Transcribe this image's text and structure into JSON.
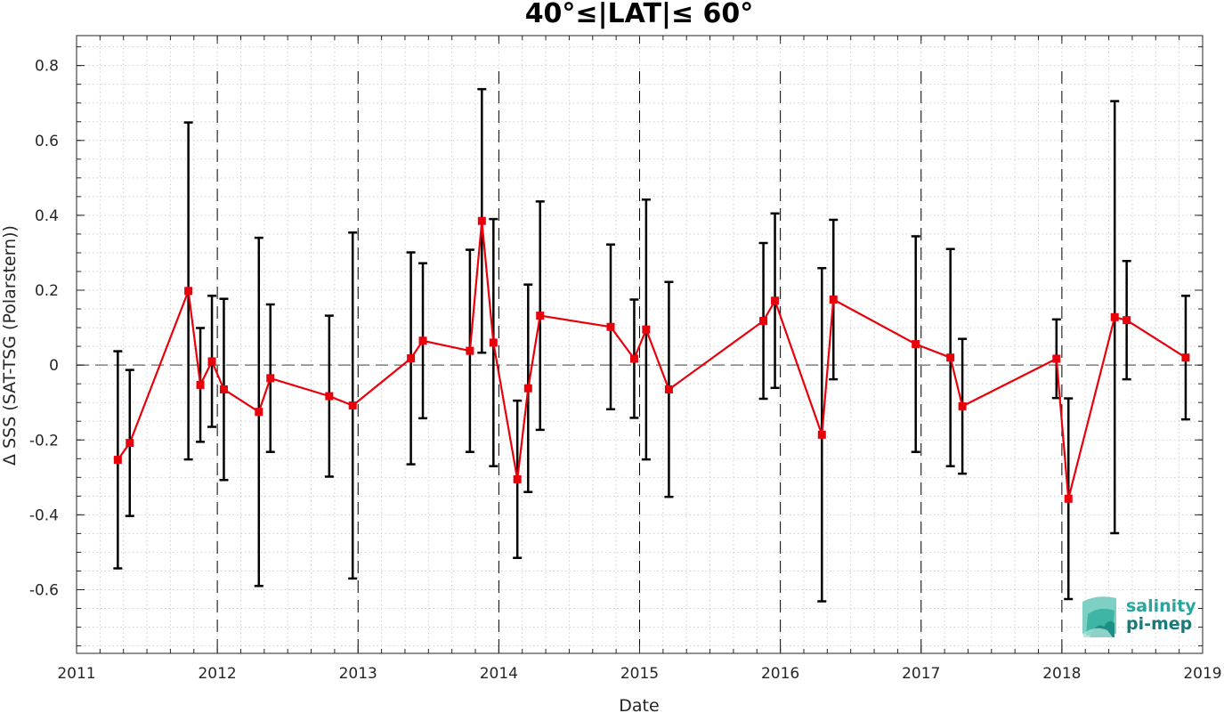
{
  "chart_data": {
    "type": "line",
    "title": "40°≤|LAT|≤ 60°",
    "xlabel": "Date",
    "ylabel": "Δ SSS (SAT-TSG (Polarstern))",
    "xlim": [
      "2011-01-01",
      "2019-01-01"
    ],
    "ylim": [
      -0.77,
      0.88
    ],
    "x_ticks": [
      "2011",
      "2012",
      "2013",
      "2014",
      "2015",
      "2016",
      "2017",
      "2018",
      "2019"
    ],
    "y_ticks": [
      "-0.6",
      "-0.4",
      "-0.2",
      "0",
      "0.2",
      "0.4",
      "0.6",
      "0.8"
    ],
    "grid": true,
    "year_boundaries_dashed": [
      "2012-01-01",
      "2013-01-01",
      "2014-01-01",
      "2015-01-01",
      "2016-01-01",
      "2017-01-01",
      "2018-01-01"
    ],
    "reference_line": 0,
    "colors": {
      "series": "#e8000b",
      "errorbar": "#000000",
      "reference": "#7f7f7f"
    },
    "series": [
      {
        "marker": "square",
        "points": [
          {
            "x": "2011-04-18",
            "y": -0.253,
            "err": 0.29
          },
          {
            "x": "2011-05-19",
            "y": -0.208,
            "err": 0.195
          },
          {
            "x": "2011-10-18",
            "y": 0.198,
            "err": 0.45
          },
          {
            "x": "2011-11-18",
            "y": -0.053,
            "err": 0.152
          },
          {
            "x": "2011-12-18",
            "y": 0.01,
            "err": 0.175
          },
          {
            "x": "2012-01-18",
            "y": -0.065,
            "err": 0.242
          },
          {
            "x": "2012-04-18",
            "y": -0.125,
            "err": 0.465
          },
          {
            "x": "2012-05-18",
            "y": -0.035,
            "err": 0.197
          },
          {
            "x": "2012-10-18",
            "y": -0.083,
            "err": 0.215
          },
          {
            "x": "2012-12-18",
            "y": -0.108,
            "err": 0.462
          },
          {
            "x": "2013-05-18",
            "y": 0.018,
            "err": 0.283
          },
          {
            "x": "2013-06-18",
            "y": 0.065,
            "err": 0.207
          },
          {
            "x": "2013-10-18",
            "y": 0.038,
            "err": 0.27
          },
          {
            "x": "2013-11-18",
            "y": 0.385,
            "err": 0.352
          },
          {
            "x": "2013-12-18",
            "y": 0.06,
            "err": 0.33
          },
          {
            "x": "2014-02-18",
            "y": -0.305,
            "err": 0.21
          },
          {
            "x": "2014-03-18",
            "y": -0.062,
            "err": 0.277
          },
          {
            "x": "2014-04-18",
            "y": 0.132,
            "err": 0.305
          },
          {
            "x": "2014-10-18",
            "y": 0.102,
            "err": 0.22
          },
          {
            "x": "2014-12-18",
            "y": 0.017,
            "err": 0.158
          },
          {
            "x": "2015-01-18",
            "y": 0.095,
            "err": 0.347
          },
          {
            "x": "2015-03-18",
            "y": -0.065,
            "err": 0.287
          },
          {
            "x": "2015-11-18",
            "y": 0.118,
            "err": 0.208
          },
          {
            "x": "2015-12-18",
            "y": 0.172,
            "err": 0.233
          },
          {
            "x": "2016-04-18",
            "y": -0.186,
            "err": 0.445
          },
          {
            "x": "2016-05-18",
            "y": 0.175,
            "err": 0.213
          },
          {
            "x": "2016-12-18",
            "y": 0.056,
            "err": 0.288
          },
          {
            "x": "2017-03-18",
            "y": 0.02,
            "err": 0.29
          },
          {
            "x": "2017-04-18",
            "y": -0.11,
            "err": 0.18
          },
          {
            "x": "2017-12-18",
            "y": 0.017,
            "err": 0.105
          },
          {
            "x": "2018-01-18",
            "y": -0.357,
            "err": 0.268
          },
          {
            "x": "2018-05-18",
            "y": 0.128,
            "err": 0.577
          },
          {
            "x": "2018-06-18",
            "y": 0.12,
            "err": 0.158
          },
          {
            "x": "2018-11-18",
            "y": 0.02,
            "err": 0.165
          }
        ]
      }
    ]
  },
  "logo": {
    "line1": "salinity",
    "line2": "pi-mep",
    "color1": "#2aa59a",
    "color2": "#1a7a7a"
  }
}
